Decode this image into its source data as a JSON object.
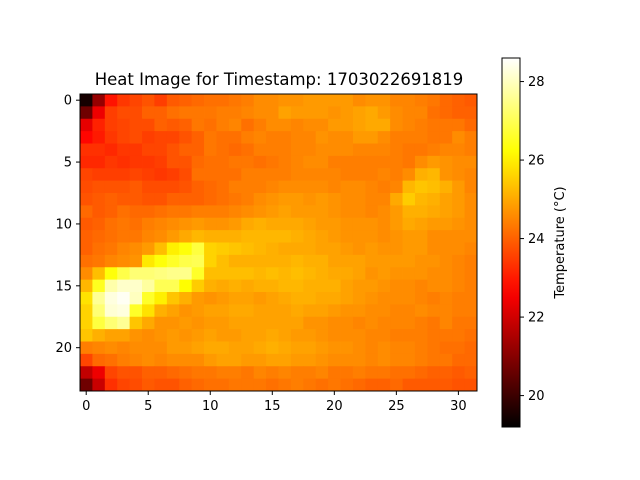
{
  "chart_data": {
    "type": "heatmap",
    "title": "Heat Image for Timestamp: 1703022691819",
    "xlabel": "",
    "ylabel": "",
    "colormap": "hot",
    "grid": false,
    "x_ticks": [
      0,
      5,
      10,
      15,
      20,
      25,
      30
    ],
    "y_ticks": [
      0,
      5,
      10,
      15,
      20
    ],
    "xlim": [
      -0.5,
      31.5
    ],
    "ylim": [
      23.5,
      -0.5
    ],
    "colorbar": {
      "label": "Temperature (°C)",
      "range": [
        19.2,
        28.6
      ],
      "ticks": [
        20,
        22,
        24,
        26,
        28
      ]
    },
    "rows": 24,
    "cols": 32,
    "values": [
      [
        19.5,
        21.2,
        22.9,
        23.4,
        23.6,
        23.8,
        23.5,
        23.9,
        24.0,
        24.1,
        24.2,
        24.2,
        24.3,
        24.4,
        24.6,
        24.6,
        24.7,
        24.7,
        24.8,
        24.8,
        24.8,
        24.8,
        24.6,
        24.7,
        24.7,
        24.5,
        24.5,
        24.4,
        24.3,
        24.1,
        24.0,
        23.9
      ],
      [
        20.7,
        22.4,
        23.5,
        23.7,
        23.7,
        24.0,
        24.0,
        24.2,
        24.3,
        24.3,
        24.3,
        24.4,
        24.4,
        24.5,
        24.6,
        24.6,
        24.9,
        24.8,
        24.8,
        24.8,
        24.7,
        24.8,
        24.9,
        25.0,
        24.8,
        24.6,
        24.5,
        24.5,
        24.2,
        24.1,
        24.0,
        24.0
      ],
      [
        22.3,
        23.1,
        23.5,
        23.6,
        23.7,
        23.7,
        24.0,
        23.9,
        24.0,
        24.3,
        24.2,
        24.4,
        24.5,
        24.2,
        24.4,
        24.6,
        24.6,
        24.5,
        24.6,
        24.6,
        24.8,
        24.8,
        24.9,
        25.0,
        25.0,
        24.6,
        24.5,
        24.4,
        24.3,
        24.3,
        24.3,
        24.1
      ],
      [
        22.7,
        23.0,
        23.4,
        23.6,
        23.7,
        23.5,
        23.6,
        23.6,
        23.8,
        24.0,
        24.3,
        24.2,
        24.2,
        24.4,
        24.5,
        24.4,
        24.4,
        24.5,
        24.5,
        24.7,
        24.6,
        24.6,
        24.8,
        24.8,
        24.6,
        24.4,
        24.4,
        24.4,
        24.3,
        24.3,
        24.6,
        24.4
      ],
      [
        23.3,
        23.3,
        23.2,
        23.4,
        23.4,
        23.6,
        23.6,
        23.8,
        24.0,
        24.0,
        24.3,
        24.2,
        24.1,
        24.2,
        24.4,
        24.4,
        24.4,
        24.5,
        24.5,
        24.6,
        24.6,
        24.6,
        24.5,
        24.5,
        24.5,
        24.4,
        24.3,
        24.3,
        24.4,
        24.5,
        24.5,
        24.4
      ],
      [
        23.2,
        23.2,
        23.4,
        23.3,
        23.4,
        23.4,
        23.5,
        23.8,
        23.8,
        24.1,
        24.2,
        24.2,
        24.3,
        24.3,
        24.2,
        24.3,
        24.4,
        24.5,
        24.6,
        24.6,
        24.4,
        24.4,
        24.4,
        24.4,
        24.4,
        24.4,
        24.3,
        24.6,
        24.8,
        24.7,
        24.6,
        24.6
      ],
      [
        23.6,
        23.5,
        23.5,
        23.5,
        23.6,
        23.5,
        23.4,
        23.5,
        23.7,
        24.2,
        24.2,
        24.2,
        24.2,
        24.4,
        24.4,
        24.4,
        24.4,
        24.5,
        24.5,
        24.5,
        24.5,
        24.4,
        24.4,
        24.4,
        24.5,
        24.4,
        24.6,
        25.1,
        25.2,
        24.7,
        24.6,
        24.5
      ],
      [
        23.7,
        23.8,
        23.8,
        23.8,
        23.9,
        23.7,
        23.7,
        23.7,
        23.8,
        24.0,
        24.1,
        24.2,
        24.4,
        24.4,
        24.4,
        24.5,
        24.6,
        24.6,
        24.6,
        24.6,
        24.5,
        24.6,
        24.6,
        24.5,
        24.4,
        24.5,
        25.2,
        25.4,
        25.3,
        25.1,
        24.8,
        24.5
      ],
      [
        23.8,
        23.9,
        24.0,
        23.9,
        23.9,
        23.8,
        23.8,
        24.0,
        24.0,
        24.0,
        24.1,
        24.2,
        24.3,
        24.4,
        24.6,
        24.7,
        24.8,
        24.8,
        24.7,
        24.8,
        24.7,
        24.6,
        24.6,
        24.5,
        24.5,
        25.0,
        25.5,
        25.2,
        25.1,
        24.9,
        24.8,
        24.6
      ],
      [
        24.1,
        23.9,
        24.0,
        24.2,
        24.1,
        24.1,
        24.2,
        24.3,
        24.3,
        24.4,
        24.4,
        24.4,
        24.5,
        24.6,
        24.7,
        24.8,
        24.9,
        24.8,
        24.8,
        24.8,
        24.7,
        24.6,
        24.6,
        24.5,
        24.6,
        24.8,
        25.1,
        25.1,
        25.0,
        24.9,
        24.8,
        24.6
      ],
      [
        23.9,
        24.0,
        24.2,
        24.3,
        24.2,
        24.4,
        24.5,
        24.6,
        24.7,
        24.8,
        24.7,
        24.7,
        24.8,
        25.0,
        25.1,
        25.0,
        25.0,
        25.0,
        24.9,
        24.8,
        24.8,
        24.7,
        24.7,
        24.7,
        24.6,
        24.8,
        25.0,
        24.9,
        24.8,
        24.8,
        24.7,
        24.6
      ],
      [
        24.0,
        24.1,
        24.2,
        24.3,
        24.3,
        24.5,
        24.6,
        24.8,
        25.0,
        25.2,
        25.1,
        25.1,
        25.1,
        25.2,
        25.2,
        25.2,
        25.2,
        25.1,
        25.0,
        24.9,
        24.8,
        24.7,
        24.7,
        24.7,
        24.6,
        24.7,
        24.8,
        24.8,
        24.6,
        24.6,
        24.6,
        24.6
      ],
      [
        24.0,
        24.2,
        24.3,
        24.5,
        24.6,
        24.8,
        25.3,
        26.0,
        26.3,
        26.8,
        25.6,
        25.5,
        25.4,
        25.3,
        25.2,
        25.1,
        25.0,
        25.0,
        25.0,
        24.9,
        24.9,
        24.8,
        24.7,
        24.8,
        24.7,
        24.7,
        24.8,
        24.8,
        24.6,
        24.6,
        24.6,
        24.5
      ],
      [
        24.2,
        24.3,
        24.5,
        24.6,
        24.7,
        25.9,
        26.3,
        26.6,
        26.9,
        27.0,
        25.6,
        25.3,
        25.1,
        25.1,
        25.1,
        25.1,
        25.1,
        25.2,
        25.1,
        25.1,
        24.9,
        24.9,
        24.9,
        24.8,
        24.8,
        24.8,
        24.8,
        24.7,
        24.7,
        24.6,
        24.5,
        24.4
      ],
      [
        24.6,
        25.3,
        26.3,
        26.9,
        27.3,
        27.3,
        27.4,
        27.5,
        27.5,
        26.6,
        25.3,
        25.3,
        25.3,
        25.3,
        25.2,
        25.3,
        25.2,
        25.3,
        25.2,
        25.1,
        25.0,
        25.0,
        24.9,
        24.7,
        24.8,
        24.7,
        24.7,
        24.7,
        24.6,
        24.6,
        24.5,
        24.4
      ],
      [
        25.2,
        26.5,
        27.8,
        28.1,
        28.1,
        27.7,
        27.0,
        27.0,
        26.2,
        25.5,
        25.1,
        25.0,
        25.1,
        25.0,
        25.1,
        25.1,
        25.2,
        25.2,
        25.1,
        25.1,
        25.1,
        24.9,
        24.8,
        24.8,
        24.7,
        24.6,
        24.6,
        24.5,
        24.6,
        24.6,
        24.5,
        24.4
      ],
      [
        25.8,
        27.6,
        28.3,
        28.5,
        28.0,
        26.6,
        26.0,
        25.4,
        25.1,
        24.8,
        24.7,
        24.8,
        24.9,
        24.9,
        24.8,
        24.9,
        25.0,
        25.1,
        25.1,
        25.0,
        25.0,
        24.9,
        24.8,
        24.7,
        24.6,
        24.6,
        24.6,
        24.5,
        24.4,
        24.5,
        24.4,
        24.4
      ],
      [
        25.6,
        27.3,
        28.2,
        28.3,
        26.6,
        25.8,
        25.1,
        24.9,
        24.7,
        24.8,
        24.9,
        24.9,
        25.0,
        25.0,
        24.9,
        24.9,
        24.9,
        25.0,
        24.9,
        24.9,
        24.8,
        24.7,
        24.7,
        24.6,
        24.6,
        24.5,
        24.5,
        24.6,
        24.5,
        24.5,
        24.4,
        24.4
      ],
      [
        25.6,
        26.8,
        27.3,
        27.6,
        25.4,
        25.0,
        24.7,
        24.7,
        24.8,
        24.7,
        24.8,
        24.8,
        24.9,
        24.9,
        24.9,
        24.9,
        24.9,
        24.9,
        24.7,
        24.7,
        24.6,
        24.6,
        24.5,
        24.6,
        24.5,
        24.5,
        24.5,
        24.4,
        24.3,
        24.5,
        24.3,
        24.3
      ],
      [
        25.4,
        25.1,
        24.9,
        24.9,
        24.7,
        24.6,
        24.7,
        24.8,
        24.7,
        24.8,
        24.9,
        24.8,
        24.8,
        24.9,
        24.9,
        25.0,
        24.9,
        24.8,
        24.8,
        24.7,
        24.6,
        24.6,
        24.6,
        24.5,
        24.5,
        24.4,
        24.4,
        24.4,
        24.3,
        24.3,
        24.3,
        24.2
      ],
      [
        24.4,
        24.5,
        24.6,
        24.5,
        24.6,
        24.6,
        24.6,
        24.8,
        24.8,
        24.9,
        25.0,
        25.0,
        24.9,
        24.9,
        25.0,
        25.1,
        25.0,
        24.9,
        24.9,
        24.8,
        24.7,
        24.7,
        24.6,
        24.5,
        24.6,
        24.5,
        24.5,
        24.4,
        24.3,
        24.2,
        24.2,
        24.1
      ],
      [
        23.6,
        24.1,
        24.2,
        24.4,
        24.5,
        24.6,
        24.5,
        24.6,
        24.6,
        24.6,
        24.8,
        24.9,
        24.9,
        24.8,
        24.8,
        24.9,
        24.9,
        24.8,
        24.8,
        24.7,
        24.6,
        24.6,
        24.6,
        24.5,
        24.6,
        24.5,
        24.5,
        24.4,
        24.3,
        24.3,
        24.1,
        24.1
      ],
      [
        21.8,
        22.4,
        23.6,
        23.8,
        23.8,
        24.0,
        24.0,
        24.1,
        24.2,
        24.3,
        24.3,
        24.4,
        24.4,
        24.3,
        24.5,
        24.4,
        24.5,
        24.4,
        24.4,
        24.5,
        24.3,
        24.3,
        24.4,
        24.3,
        24.3,
        24.2,
        24.2,
        24.1,
        24.0,
        24.0,
        23.9,
        24.0
      ],
      [
        20.7,
        21.9,
        23.3,
        23.6,
        23.7,
        23.9,
        23.8,
        23.8,
        24.0,
        24.1,
        24.2,
        24.2,
        24.3,
        24.3,
        24.3,
        24.2,
        24.3,
        24.4,
        24.3,
        24.2,
        24.3,
        24.2,
        24.1,
        24.0,
        24.0,
        24.1,
        23.9,
        23.9,
        23.9,
        23.9,
        23.8,
        23.8
      ]
    ]
  }
}
